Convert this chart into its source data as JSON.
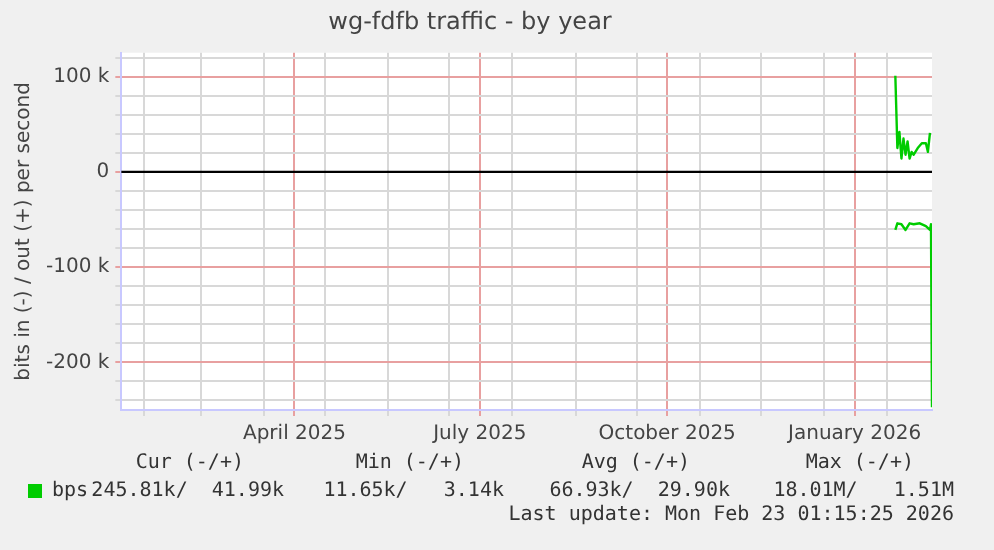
{
  "chart_data": {
    "type": "line",
    "title": "wg-fdfb traffic - by year",
    "ylabel": "bits in (-) / out (+) per second",
    "x": [
      "2026-02-05",
      "2026-02-06",
      "2026-02-07",
      "2026-02-08",
      "2026-02-09",
      "2026-02-10",
      "2026-02-11",
      "2026-02-12",
      "2026-02-13",
      "2026-02-14",
      "2026-02-16",
      "2026-02-18",
      "2026-02-20",
      "2026-02-21",
      "2026-02-22"
    ],
    "series": [
      {
        "name": "bps",
        "color": "#00cc00",
        "values": [
          101000,
          25000,
          42000,
          14000,
          35000,
          18000,
          32000,
          14000,
          21000,
          18000,
          25000,
          30000,
          30000,
          21000,
          41000
        ]
      },
      {
        "color": "#00cc00",
        "x": [
          "2026-02-05",
          "2026-02-06",
          "2026-02-08",
          "2026-02-10",
          "2026-02-12",
          "2026-02-14",
          "2026-02-17",
          "2026-02-20",
          "2026-02-22",
          "2026-02-22T12:00",
          "2026-02-23"
        ],
        "values": [
          -61000,
          -54000,
          -55000,
          -61000,
          -54000,
          -55000,
          -54000,
          -57000,
          -61000,
          -55000,
          -247000
        ]
      }
    ],
    "xlim": [
      "2025-01-21",
      "2026-02-23"
    ],
    "xticks": [
      {
        "value": "2025-02-01",
        "label": null
      },
      {
        "value": "2025-03-01",
        "label": null
      },
      {
        "value": "2025-04-01",
        "label": null
      },
      {
        "value": "2025-04-16",
        "label": "April 2025"
      },
      {
        "value": "2025-05-01",
        "label": null
      },
      {
        "value": "2025-06-01",
        "label": null
      },
      {
        "value": "2025-07-01",
        "label": null
      },
      {
        "value": "2025-07-16",
        "label": "July 2025"
      },
      {
        "value": "2025-08-01",
        "label": null
      },
      {
        "value": "2025-09-01",
        "label": null
      },
      {
        "value": "2025-10-01",
        "label": null
      },
      {
        "value": "2025-10-16",
        "label": "October 2025"
      },
      {
        "value": "2025-11-01",
        "label": null
      },
      {
        "value": "2025-12-01",
        "label": null
      },
      {
        "value": "2026-01-01",
        "label": null
      },
      {
        "value": "2026-01-16",
        "label": "January 2026"
      },
      {
        "value": "2026-02-01",
        "label": null
      }
    ],
    "ylim": [
      -250000,
      125000
    ],
    "yticks": [
      {
        "value": -240000,
        "label": null
      },
      {
        "value": -220000,
        "label": null
      },
      {
        "value": -200000,
        "label": "-200 k"
      },
      {
        "value": -180000,
        "label": null
      },
      {
        "value": -160000,
        "label": null
      },
      {
        "value": -140000,
        "label": null
      },
      {
        "value": -120000,
        "label": null
      },
      {
        "value": -100000,
        "label": "-100 k"
      },
      {
        "value": -80000,
        "label": null
      },
      {
        "value": -60000,
        "label": null
      },
      {
        "value": -40000,
        "label": null
      },
      {
        "value": -20000,
        "label": null
      },
      0,
      {
        "value": 20000,
        "label": null
      },
      {
        "value": 40000,
        "label": null
      },
      {
        "value": 60000,
        "label": null
      },
      {
        "value": 80000,
        "label": null
      },
      {
        "value": 100000,
        "label": "100 k"
      },
      {
        "value": 120000,
        "label": null
      }
    ],
    "ref_lines": [
      {
        "axis": "y",
        "value": 0,
        "color": "#000000"
      }
    ],
    "grid": true,
    "legend": "bottom left",
    "marker": "none",
    "line_style": "solid",
    "annotations": [
      "Cur (-/+)",
      "Min (-/+)",
      "Avg (-/+)",
      "Max (-/+)",
      "245.81k/  41.99k",
      "11.65k/   3.14k",
      "66.93k/  29.90k",
      "18.01M/   1.51M",
      "Last update: Mon Feb 23 01:15:25 2026"
    ]
  }
}
